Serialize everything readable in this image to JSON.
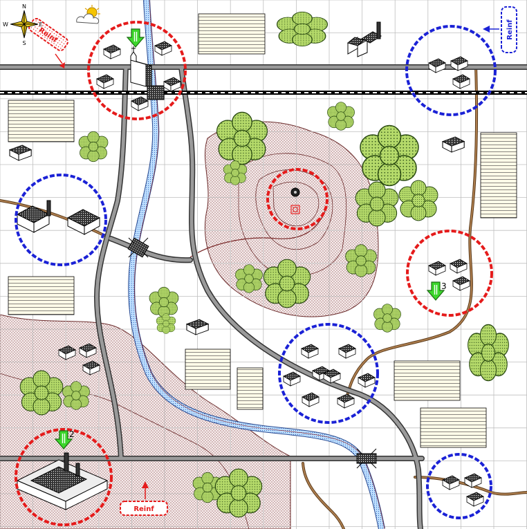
{
  "compass": {
    "n": "N",
    "s": "S",
    "e": "E",
    "w": "W"
  },
  "reinforcements": {
    "north_west": "Reinf",
    "north_east": "Reinf",
    "south": "Reinf"
  },
  "objective_labels": {
    "obj2": "2",
    "obj3": "3"
  },
  "colors": {
    "friendly_zone": "#e51b1b",
    "enemy_zone": "#1b22d6",
    "objective_arrow": "#3cd62c",
    "river": "#4a7fd0",
    "road": "#7a7a7a",
    "trail": "#8a5a2a",
    "hill": "#c9a8a8",
    "forest": "#a8d060",
    "grid": "#bfbfbf"
  },
  "icons": [
    "compass-rose-icon",
    "weather-sun-cloud-icon",
    "factory-icon",
    "house-icon",
    "church-icon",
    "bridge-icon",
    "summit-icon",
    "objective-arrow-icon"
  ]
}
